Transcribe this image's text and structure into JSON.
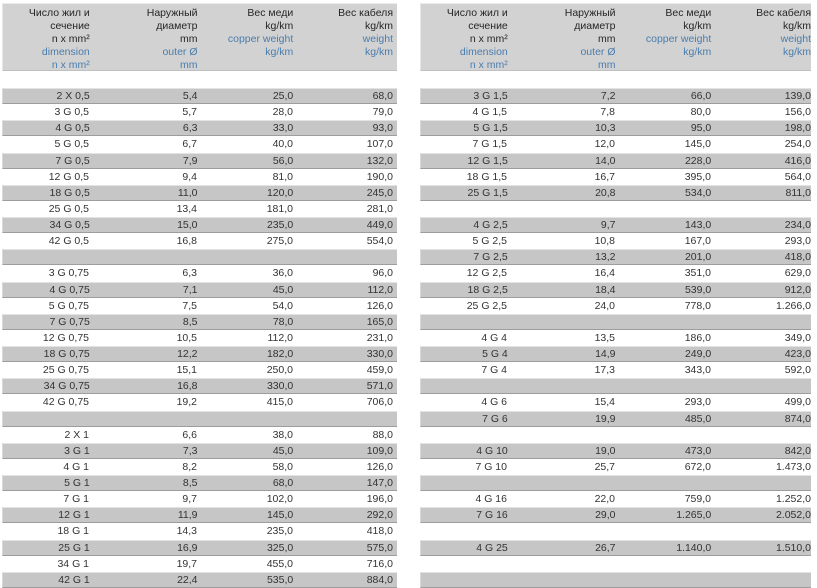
{
  "colors": {
    "header_bg": "#d2d2d2",
    "row_gray": "#c6c6c6",
    "row_bevel_light": "#e3e3e3",
    "row_bevel_dark": "#9d9d9d",
    "text_dark": "#333333",
    "text_black": "#262626",
    "text_blue": "#4a7dae"
  },
  "header": {
    "columns": [
      {
        "name": "dimension",
        "lines": [
          {
            "t": "Число жил и",
            "c": "black"
          },
          {
            "t": "сечение",
            "c": "black"
          },
          {
            "t": "n x mm²",
            "c": "black"
          },
          {
            "t": "dimension",
            "c": "blue"
          },
          {
            "t": "n x mm²",
            "c": "blue"
          }
        ]
      },
      {
        "name": "outer-diameter",
        "lines": [
          {
            "t": "Наружный",
            "c": "black"
          },
          {
            "t": "диаметр",
            "c": "black"
          },
          {
            "t": "mm",
            "c": "black"
          },
          {
            "t": "outer Ø",
            "c": "blue"
          },
          {
            "t": "mm",
            "c": "blue"
          }
        ]
      },
      {
        "name": "copper-weight",
        "lines": [
          {
            "t": "Вес меди",
            "c": "black"
          },
          {
            "t": "kg/km",
            "c": "black"
          },
          {
            "t": "copper weight",
            "c": "blue"
          },
          {
            "t": "kg/km",
            "c": "blue"
          }
        ]
      },
      {
        "name": "cable-weight",
        "lines": [
          {
            "t": "Вес кабеля",
            "c": "black"
          },
          {
            "t": "kg/km",
            "c": "black"
          },
          {
            "t": "weight",
            "c": "blue"
          },
          {
            "t": "kg/km",
            "c": "blue"
          }
        ]
      }
    ]
  },
  "tables": {
    "left": {
      "rows": [
        {
          "type": "data",
          "shade": "gray",
          "dimension": "2 X 0,5",
          "outer": "5,4",
          "copper": "25,0",
          "weight": "68,0"
        },
        {
          "type": "data",
          "shade": "white",
          "dimension": "3 G 0,5",
          "outer": "5,7",
          "copper": "28,0",
          "weight": "79,0"
        },
        {
          "type": "data",
          "shade": "gray",
          "dimension": "4 G 0,5",
          "outer": "6,3",
          "copper": "33,0",
          "weight": "93,0"
        },
        {
          "type": "data",
          "shade": "white",
          "dimension": "5 G 0,5",
          "outer": "6,7",
          "copper": "40,0",
          "weight": "107,0"
        },
        {
          "type": "data",
          "shade": "gray",
          "dimension": "7 G 0,5",
          "outer": "7,9",
          "copper": "56,0",
          "weight": "132,0"
        },
        {
          "type": "data",
          "shade": "white",
          "dimension": "12 G 0,5",
          "outer": "9,4",
          "copper": "81,0",
          "weight": "190,0"
        },
        {
          "type": "data",
          "shade": "gray",
          "dimension": "18 G 0,5",
          "outer": "11,0",
          "copper": "120,0",
          "weight": "245,0"
        },
        {
          "type": "data",
          "shade": "white",
          "dimension": "25 G 0,5",
          "outer": "13,4",
          "copper": "181,0",
          "weight": "281,0"
        },
        {
          "type": "data",
          "shade": "gray",
          "dimension": "34 G 0,5",
          "outer": "15,0",
          "copper": "235,0",
          "weight": "449,0"
        },
        {
          "type": "data",
          "shade": "white",
          "dimension": "42 G 0,5",
          "outer": "16,8",
          "copper": "275,0",
          "weight": "554,0"
        },
        {
          "type": "spacer",
          "shade": "gray"
        },
        {
          "type": "data",
          "shade": "white",
          "dimension": "3 G 0,75",
          "outer": "6,3",
          "copper": "36,0",
          "weight": "96,0"
        },
        {
          "type": "data",
          "shade": "gray",
          "dimension": "4 G 0,75",
          "outer": "7,1",
          "copper": "45,0",
          "weight": "112,0"
        },
        {
          "type": "data",
          "shade": "white",
          "dimension": "5 G 0,75",
          "outer": "7,5",
          "copper": "54,0",
          "weight": "126,0"
        },
        {
          "type": "data",
          "shade": "gray",
          "dimension": "7 G 0,75",
          "outer": "8,5",
          "copper": "78,0",
          "weight": "165,0"
        },
        {
          "type": "data",
          "shade": "white",
          "dimension": "12 G 0,75",
          "outer": "10,5",
          "copper": "112,0",
          "weight": "231,0"
        },
        {
          "type": "data",
          "shade": "gray",
          "dimension": "18 G 0,75",
          "outer": "12,2",
          "copper": "182,0",
          "weight": "330,0"
        },
        {
          "type": "data",
          "shade": "white",
          "dimension": "25 G 0,75",
          "outer": "15,1",
          "copper": "250,0",
          "weight": "459,0"
        },
        {
          "type": "data",
          "shade": "gray",
          "dimension": "34 G 0,75",
          "outer": "16,8",
          "copper": "330,0",
          "weight": "571,0"
        },
        {
          "type": "data",
          "shade": "white",
          "dimension": "42 G 0,75",
          "outer": "19,2",
          "copper": "415,0",
          "weight": "706,0"
        },
        {
          "type": "spacer",
          "shade": "gray"
        },
        {
          "type": "data",
          "shade": "white",
          "dimension": "2 X 1",
          "outer": "6,6",
          "copper": "38,0",
          "weight": "88,0"
        },
        {
          "type": "data",
          "shade": "gray",
          "dimension": "3 G 1",
          "outer": "7,3",
          "copper": "45,0",
          "weight": "109,0"
        },
        {
          "type": "data",
          "shade": "white",
          "dimension": "4 G 1",
          "outer": "8,2",
          "copper": "58,0",
          "weight": "126,0"
        },
        {
          "type": "data",
          "shade": "gray",
          "dimension": "5 G 1",
          "outer": "8,5",
          "copper": "68,0",
          "weight": "147,0"
        },
        {
          "type": "data",
          "shade": "white",
          "dimension": "7 G 1",
          "outer": "9,7",
          "copper": "102,0",
          "weight": "196,0"
        },
        {
          "type": "data",
          "shade": "gray",
          "dimension": "12 G 1",
          "outer": "11,9",
          "copper": "145,0",
          "weight": "292,0"
        },
        {
          "type": "data",
          "shade": "white",
          "dimension": "18 G 1",
          "outer": "14,3",
          "copper": "235,0",
          "weight": "418,0"
        },
        {
          "type": "data",
          "shade": "gray",
          "dimension": "25 G 1",
          "outer": "16,9",
          "copper": "325,0",
          "weight": "575,0"
        },
        {
          "type": "data",
          "shade": "white",
          "dimension": "34 G 1",
          "outer": "19,7",
          "copper": "455,0",
          "weight": "716,0"
        },
        {
          "type": "data",
          "shade": "gray",
          "dimension": "42 G 1",
          "outer": "22,4",
          "copper": "535,0",
          "weight": "884,0"
        }
      ]
    },
    "right": {
      "rows": [
        {
          "type": "data",
          "shade": "gray",
          "dimension": "3 G 1,5",
          "outer": "7,2",
          "copper": "66,0",
          "weight": "139,0"
        },
        {
          "type": "data",
          "shade": "white",
          "dimension": "4 G 1,5",
          "outer": "7,8",
          "copper": "80,0",
          "weight": "156,0"
        },
        {
          "type": "data",
          "shade": "gray",
          "dimension": "5 G 1,5",
          "outer": "10,3",
          "copper": "95,0",
          "weight": "198,0"
        },
        {
          "type": "data",
          "shade": "white",
          "dimension": "7 G 1,5",
          "outer": "12,0",
          "copper": "145,0",
          "weight": "254,0"
        },
        {
          "type": "data",
          "shade": "gray",
          "dimension": "12 G 1,5",
          "outer": "14,0",
          "copper": "228,0",
          "weight": "416,0"
        },
        {
          "type": "data",
          "shade": "white",
          "dimension": "18 G 1,5",
          "outer": "16,7",
          "copper": "395,0",
          "weight": "564,0"
        },
        {
          "type": "data",
          "shade": "gray",
          "dimension": "25 G 1,5",
          "outer": "20,8",
          "copper": "534,0",
          "weight": "811,0"
        },
        {
          "type": "spacer",
          "shade": "white"
        },
        {
          "type": "data",
          "shade": "gray",
          "dimension": "4 G 2,5",
          "outer": "9,7",
          "copper": "143,0",
          "weight": "234,0"
        },
        {
          "type": "data",
          "shade": "white",
          "dimension": "5 G 2,5",
          "outer": "10,8",
          "copper": "167,0",
          "weight": "293,0"
        },
        {
          "type": "data",
          "shade": "gray",
          "dimension": "7 G 2,5",
          "outer": "13,2",
          "copper": "201,0",
          "weight": "418,0"
        },
        {
          "type": "data",
          "shade": "white",
          "dimension": "12 G 2,5",
          "outer": "16,4",
          "copper": "351,0",
          "weight": "629,0"
        },
        {
          "type": "data",
          "shade": "gray",
          "dimension": "18 G 2,5",
          "outer": "18,4",
          "copper": "539,0",
          "weight": "912,0"
        },
        {
          "type": "data",
          "shade": "white",
          "dimension": "25 G 2,5",
          "outer": "24,0",
          "copper": "778,0",
          "weight": "1.266,0"
        },
        {
          "type": "spacer",
          "shade": "gray"
        },
        {
          "type": "data",
          "shade": "white",
          "dimension": "4 G 4",
          "outer": "13,5",
          "copper": "186,0",
          "weight": "349,0"
        },
        {
          "type": "data",
          "shade": "gray",
          "dimension": "5 G 4",
          "outer": "14,9",
          "copper": "249,0",
          "weight": "423,0"
        },
        {
          "type": "data",
          "shade": "white",
          "dimension": "7 G 4",
          "outer": "17,3",
          "copper": "343,0",
          "weight": "592,0"
        },
        {
          "type": "spacer",
          "shade": "gray"
        },
        {
          "type": "data",
          "shade": "white",
          "dimension": "4 G 6",
          "outer": "15,4",
          "copper": "293,0",
          "weight": "499,0"
        },
        {
          "type": "data",
          "shade": "gray",
          "dimension": "7 G 6",
          "outer": "19,9",
          "copper": "485,0",
          "weight": "874,0"
        },
        {
          "type": "spacer",
          "shade": "white"
        },
        {
          "type": "data",
          "shade": "gray",
          "dimension": "4 G 10",
          "outer": "19,0",
          "copper": "473,0",
          "weight": "842,0"
        },
        {
          "type": "data",
          "shade": "white",
          "dimension": "7 G 10",
          "outer": "25,7",
          "copper": "672,0",
          "weight": "1.473,0"
        },
        {
          "type": "spacer",
          "shade": "gray"
        },
        {
          "type": "data",
          "shade": "white",
          "dimension": "4 G 16",
          "outer": "22,0",
          "copper": "759,0",
          "weight": "1.252,0"
        },
        {
          "type": "data",
          "shade": "gray",
          "dimension": "7 G 16",
          "outer": "29,0",
          "copper": "1.265,0",
          "weight": "2.052,0"
        },
        {
          "type": "spacer",
          "shade": "white"
        },
        {
          "type": "data",
          "shade": "gray",
          "dimension": "4 G 25",
          "outer": "26,7",
          "copper": "1.140,0",
          "weight": "1.510,0"
        },
        {
          "type": "spacer",
          "shade": "white"
        },
        {
          "type": "spacer",
          "shade": "gray"
        }
      ]
    }
  }
}
